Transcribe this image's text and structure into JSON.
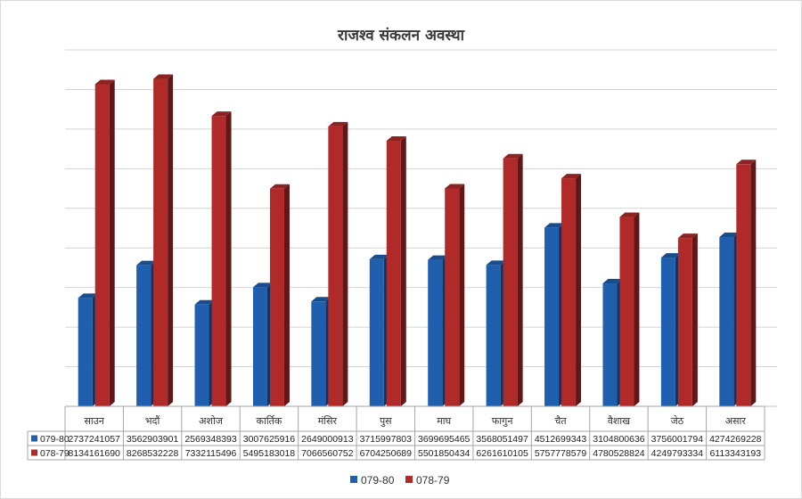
{
  "chart_data": {
    "type": "bar",
    "title": "राजश्व संकलन अवस्था",
    "categories": [
      "साउन",
      "भदौं",
      "अशोज",
      "कार्तिक",
      "मंसिर",
      "पुस",
      "माघ",
      "फागुन",
      "चैत",
      "वैशाख",
      "जेठ",
      "असार"
    ],
    "series": [
      {
        "name": "079-80",
        "color": "#1f5fae",
        "values": [
          2737241057,
          3562903901,
          2569348393,
          3007625916,
          2649000913,
          3715997803,
          3699695465,
          3568051497,
          4512699343,
          3104800636,
          3756001794,
          4274269228
        ]
      },
      {
        "name": "078-79",
        "color": "#b02a2a",
        "values": [
          8134161690,
          8268532228,
          7332115496,
          5495183018,
          7066560752,
          6704250689,
          5501850434,
          6261610105,
          5757778579,
          4780528824,
          4249793334,
          6113343193
        ]
      }
    ],
    "data_table": true,
    "legend": "bottom",
    "grid": true,
    "ylim": [
      0,
      9000000000
    ]
  }
}
